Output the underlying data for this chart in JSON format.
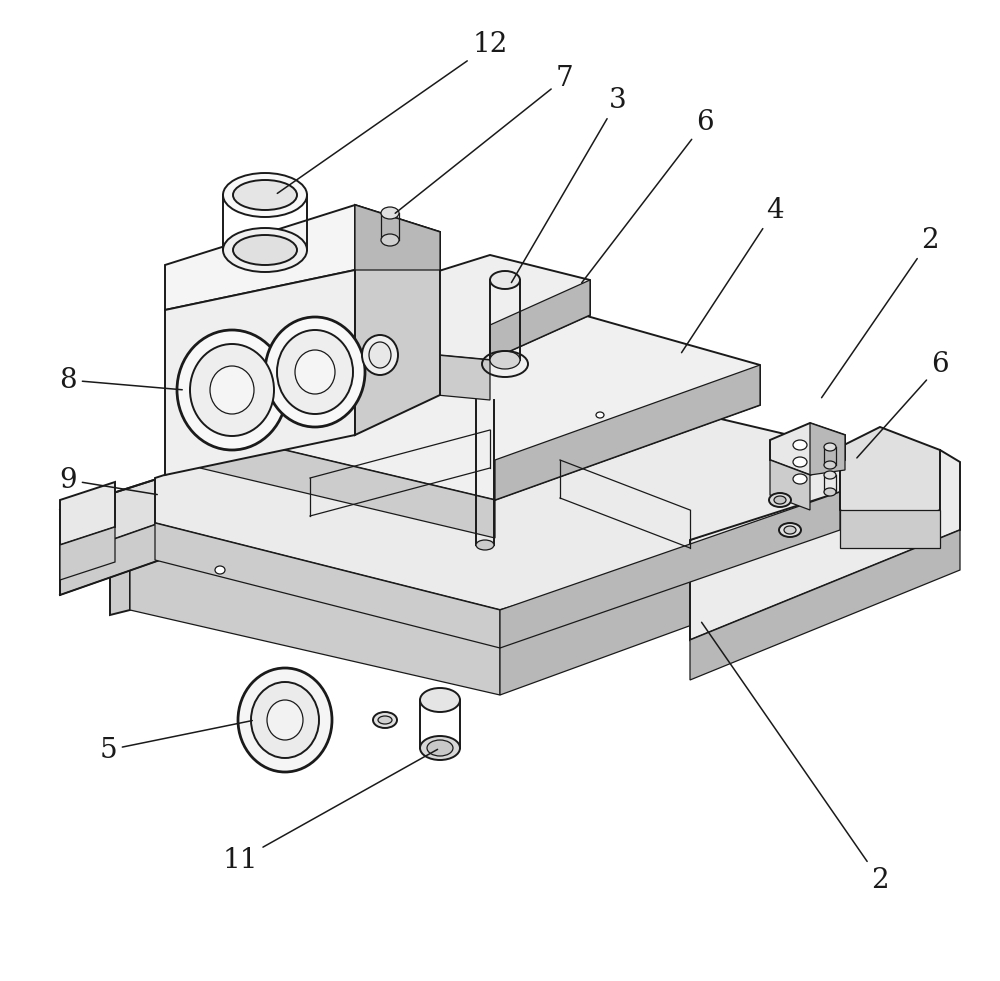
{
  "bg_color": "#ffffff",
  "lc": "#1a1a1a",
  "fc_light": "#f2f2f2",
  "fc_mid": "#e0e0e0",
  "fc_dark": "#cccccc",
  "fc_darker": "#b8b8b8",
  "lw_main": 1.4,
  "lw_thin": 0.9,
  "lw_thick": 2.0,
  "label_fs": 20
}
